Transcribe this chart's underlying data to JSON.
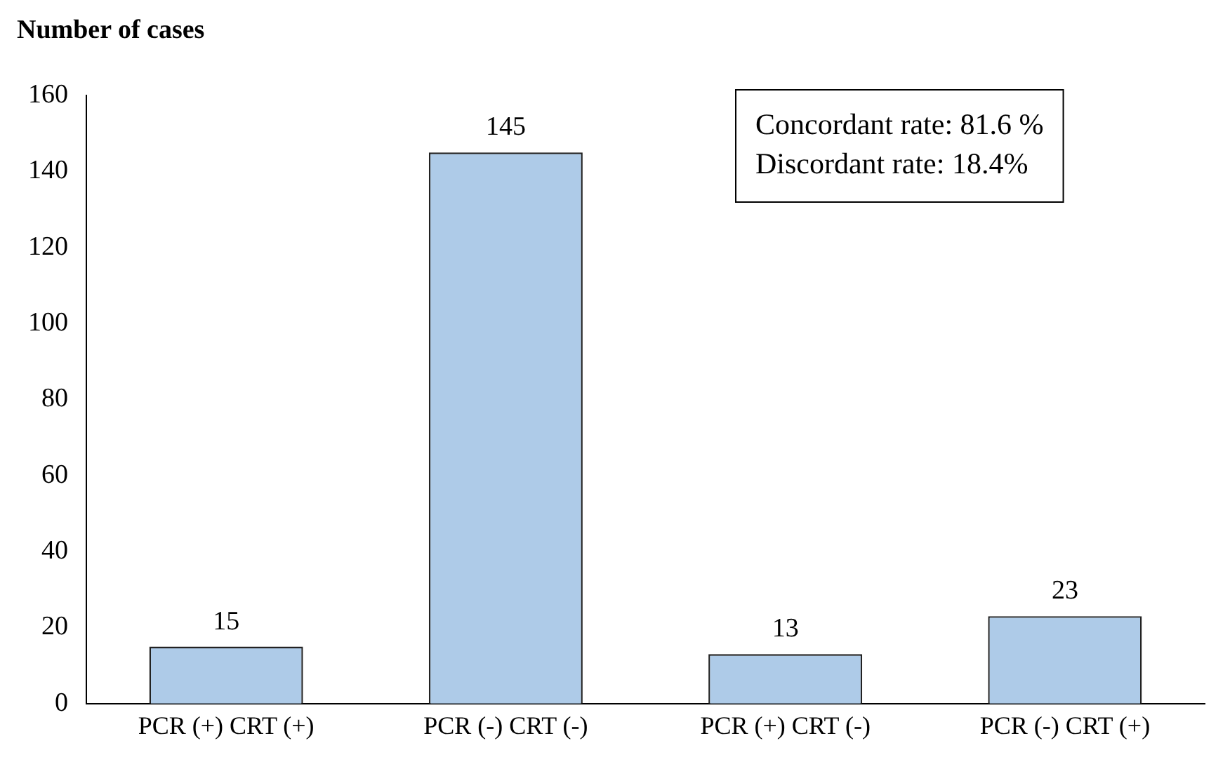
{
  "chart_data": {
    "type": "bar",
    "ylabel": "Number of cases",
    "categories": [
      "PCR (+) CRT (+)",
      "PCR (-) CRT (-)",
      "PCR (+) CRT (-)",
      "PCR (-) CRT (+)"
    ],
    "values": [
      15,
      145,
      13,
      23
    ],
    "color": "#aecbe8",
    "ylim": [
      0,
      160
    ],
    "yticks": [
      0,
      20,
      40,
      60,
      80,
      100,
      120,
      140,
      160
    ],
    "grid": false,
    "legend": false,
    "data_labels": true,
    "annotations": [
      "Concordant rate: 81.6 %",
      "Discordant rate: 18.4%"
    ]
  }
}
